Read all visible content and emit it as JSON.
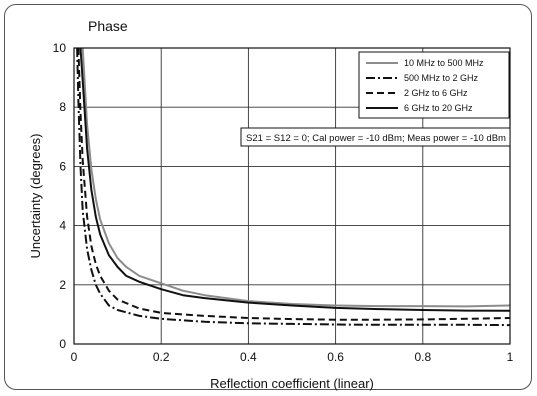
{
  "chart_data": {
    "type": "line",
    "title": "Phase",
    "xlabel": "Reflection coefficient (linear)",
    "ylabel": "Uncertainty (degrees)",
    "xlim": [
      0,
      1
    ],
    "ylim": [
      0,
      10
    ],
    "xticks": [
      0,
      0.2,
      0.4,
      0.6,
      0.8,
      1
    ],
    "xtick_labels": [
      "0",
      "0.2",
      "0.4",
      "0.6",
      "0.8",
      "1"
    ],
    "yticks": [
      0,
      2,
      4,
      6,
      8,
      10
    ],
    "ytick_labels": [
      "0",
      "2",
      "4",
      "6",
      "8",
      "10"
    ],
    "grid": true,
    "legend_position": "top-right",
    "annotation": "S21 = S12 = 0; Cal power = -10 dBm; Meas power = -10 dBm",
    "series": [
      {
        "name": "10 MHz to 500 MHz",
        "color": "#8c8c8c",
        "dash": "solid",
        "x": [
          0.02,
          0.03,
          0.04,
          0.05,
          0.06,
          0.08,
          0.1,
          0.12,
          0.15,
          0.2,
          0.25,
          0.3,
          0.4,
          0.5,
          0.6,
          0.7,
          0.8,
          0.9,
          1.0
        ],
        "y": [
          10.0,
          7.4,
          5.9,
          4.9,
          4.2,
          3.4,
          2.9,
          2.6,
          2.3,
          2.05,
          1.8,
          1.65,
          1.45,
          1.35,
          1.3,
          1.28,
          1.28,
          1.27,
          1.3
        ]
      },
      {
        "name": "500 MHz to 2 GHz",
        "color": "#111111",
        "dash": "dashdot",
        "x": [
          0.007,
          0.01,
          0.015,
          0.02,
          0.03,
          0.04,
          0.05,
          0.06,
          0.08,
          0.1,
          0.15,
          0.2,
          0.3,
          0.4,
          0.5,
          0.6,
          0.7,
          0.8,
          0.9,
          1.0
        ],
        "y": [
          10.0,
          8.2,
          6.0,
          4.5,
          3.2,
          2.5,
          2.0,
          1.7,
          1.3,
          1.15,
          0.95,
          0.85,
          0.75,
          0.7,
          0.68,
          0.66,
          0.65,
          0.65,
          0.65,
          0.64
        ]
      },
      {
        "name": "2 GHz to 6 GHz",
        "color": "#111111",
        "dash": "dashed",
        "x": [
          0.01,
          0.015,
          0.02,
          0.03,
          0.04,
          0.05,
          0.06,
          0.08,
          0.1,
          0.15,
          0.2,
          0.3,
          0.4,
          0.5,
          0.6,
          0.7,
          0.8,
          0.9,
          1.0
        ],
        "y": [
          10.0,
          7.8,
          6.2,
          4.3,
          3.3,
          2.7,
          2.3,
          1.8,
          1.5,
          1.2,
          1.05,
          0.95,
          0.88,
          0.84,
          0.82,
          0.82,
          0.83,
          0.85,
          0.88
        ]
      },
      {
        "name": "6 GHz to 20 GHz",
        "color": "#111111",
        "dash": "solid",
        "x": [
          0.015,
          0.02,
          0.03,
          0.04,
          0.05,
          0.06,
          0.08,
          0.1,
          0.12,
          0.15,
          0.2,
          0.25,
          0.3,
          0.4,
          0.5,
          0.6,
          0.7,
          0.8,
          0.9,
          1.0
        ],
        "y": [
          10.0,
          8.9,
          6.6,
          5.2,
          4.3,
          3.7,
          3.0,
          2.6,
          2.3,
          2.1,
          1.85,
          1.65,
          1.55,
          1.4,
          1.3,
          1.22,
          1.18,
          1.15,
          1.13,
          1.12
        ]
      }
    ]
  }
}
